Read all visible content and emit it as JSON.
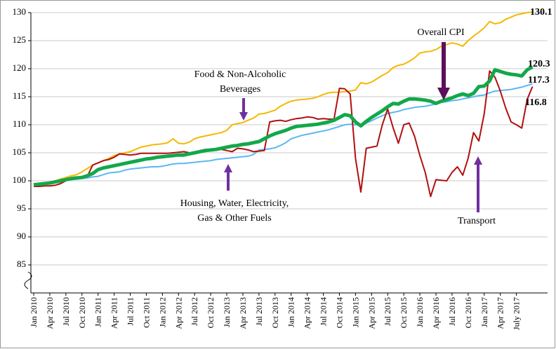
{
  "chart_data": {
    "type": "line",
    "categories": [
      "Jan 2010",
      null,
      null,
      "Apr 2010",
      null,
      null,
      "Jul 2010",
      null,
      null,
      "Oct 2010",
      null,
      null,
      "Jan 2011",
      null,
      null,
      "Apr 2011",
      null,
      null,
      "Jul 2011",
      null,
      null,
      "Oct 2011",
      null,
      null,
      "Jan 2012",
      null,
      null,
      "Apr 2012",
      null,
      null,
      "Jul 2012",
      null,
      null,
      "Oct 2012",
      null,
      null,
      "Jan 2013",
      null,
      null,
      "Apr 2013",
      null,
      null,
      "Jul 2013",
      null,
      null,
      "Oct 2013",
      null,
      null,
      "Jan 2014",
      null,
      null,
      "Apr 2014",
      null,
      null,
      "Jul 2014",
      null,
      null,
      "Oct 2014",
      null,
      null,
      "Jan 2015",
      null,
      null,
      "Apr 2015",
      null,
      null,
      "Jul 2015",
      null,
      null,
      "Oct 2015",
      null,
      null,
      "Jan 2016",
      null,
      null,
      "Apr 2016",
      null,
      null,
      "Jul 2016",
      null,
      null,
      "Oct 2016",
      null,
      null,
      "Jan 2017",
      null,
      null,
      "Apr 2017",
      null,
      null,
      "July 2017",
      null,
      null,
      null
    ],
    "series": [
      {
        "name": "Food & Non-Alcoholic Beverages",
        "color": "#f5b800",
        "width": 2,
        "values": [
          99.3,
          99.4,
          99.5,
          99.7,
          100.0,
          100.3,
          100.6,
          100.9,
          101.1,
          101.6,
          102.2,
          102.8,
          103.2,
          103.6,
          104.0,
          104.5,
          104.8,
          105.0,
          105.2,
          105.6,
          106.0,
          106.2,
          106.4,
          106.5,
          106.6,
          106.8,
          107.5,
          106.7,
          106.6,
          106.9,
          107.5,
          107.8,
          108.0,
          108.2,
          108.4,
          108.6,
          109.0,
          110.0,
          110.2,
          110.4,
          110.8,
          111.2,
          111.9,
          112.0,
          112.3,
          112.6,
          113.3,
          113.8,
          114.2,
          114.4,
          114.5,
          114.6,
          114.7,
          115.0,
          115.4,
          115.7,
          115.8,
          115.8,
          115.9,
          116.0,
          116.2,
          117.5,
          117.3,
          117.6,
          118.2,
          118.8,
          119.3,
          120.2,
          120.6,
          120.8,
          121.3,
          121.9,
          122.8,
          123.0,
          123.1,
          123.4,
          124.0,
          124.3,
          124.6,
          124.4,
          124.0,
          125.0,
          125.8,
          126.5,
          127.3,
          128.4,
          128.0,
          128.2,
          128.8,
          129.2,
          129.6,
          129.8,
          130.0,
          130.1
        ]
      },
      {
        "name": "Housing, Water, Electricity, Gas & Other Fuels",
        "color": "#5bb8f0",
        "width": 2,
        "values": [
          99.3,
          99.4,
          99.5,
          99.6,
          99.7,
          99.9,
          100.1,
          100.2,
          100.3,
          100.4,
          100.5,
          100.7,
          100.8,
          101.1,
          101.4,
          101.5,
          101.6,
          101.9,
          102.1,
          102.2,
          102.3,
          102.4,
          102.5,
          102.5,
          102.6,
          102.8,
          103.0,
          103.1,
          103.1,
          103.2,
          103.3,
          103.4,
          103.5,
          103.6,
          103.8,
          103.9,
          104.0,
          104.1,
          104.2,
          104.3,
          104.4,
          104.7,
          105.5,
          105.6,
          105.7,
          105.9,
          106.3,
          106.8,
          107.5,
          107.8,
          108.1,
          108.3,
          108.5,
          108.7,
          108.9,
          109.1,
          109.4,
          109.7,
          110.0,
          110.1,
          110.0,
          109.9,
          110.3,
          110.7,
          111.2,
          111.6,
          112.0,
          112.2,
          112.4,
          112.7,
          112.9,
          113.1,
          113.2,
          113.3,
          113.5,
          113.7,
          114.0,
          114.1,
          114.3,
          114.4,
          114.6,
          114.8,
          115.0,
          115.2,
          115.3,
          115.7,
          116.0,
          116.1,
          116.2,
          116.3,
          116.5,
          116.7,
          117.0,
          117.3
        ]
      },
      {
        "name": "Transport",
        "color": "#b01010",
        "width": 2,
        "values": [
          99.0,
          99.0,
          99.1,
          99.1,
          99.2,
          99.5,
          100.0,
          100.6,
          100.7,
          100.6,
          100.8,
          102.8,
          103.2,
          103.6,
          103.8,
          104.2,
          104.8,
          104.7,
          104.6,
          104.7,
          104.9,
          104.9,
          104.9,
          104.9,
          104.9,
          104.9,
          105.0,
          105.1,
          105.2,
          105.0,
          105.0,
          105.4,
          105.6,
          105.6,
          105.6,
          105.6,
          105.4,
          105.2,
          105.8,
          105.7,
          105.5,
          105.2,
          105.3,
          105.4,
          110.5,
          110.7,
          110.8,
          110.6,
          110.9,
          111.1,
          111.2,
          111.4,
          111.3,
          111.0,
          111.1,
          111.0,
          111.0,
          116.5,
          116.4,
          115.5,
          104.0,
          98.0,
          105.8,
          106.0,
          106.2,
          110.0,
          112.8,
          109.5,
          106.7,
          110.0,
          110.3,
          108.0,
          104.5,
          101.5,
          97.2,
          100.2,
          100.1,
          100.0,
          101.5,
          102.5,
          101.0,
          104.0,
          108.6,
          107.1,
          112.0,
          119.6,
          118.5,
          116.0,
          113.0,
          110.5,
          110.0,
          109.4,
          114.5,
          116.8
        ]
      },
      {
        "name": "Overall CPI",
        "color": "#12a84a",
        "width": 5,
        "values": [
          99.3,
          99.4,
          99.5,
          99.6,
          99.8,
          100.0,
          100.2,
          100.4,
          100.5,
          100.6,
          100.9,
          101.3,
          102.0,
          102.3,
          102.5,
          102.7,
          102.9,
          103.1,
          103.3,
          103.5,
          103.7,
          103.9,
          104.0,
          104.2,
          104.3,
          104.4,
          104.5,
          104.6,
          104.6,
          104.8,
          105.0,
          105.2,
          105.4,
          105.5,
          105.6,
          105.8,
          106.0,
          106.2,
          106.3,
          106.5,
          106.6,
          106.8,
          107.0,
          107.5,
          108.0,
          108.4,
          108.7,
          109.0,
          109.4,
          109.7,
          109.8,
          109.9,
          110.0,
          110.1,
          110.3,
          110.5,
          110.8,
          111.3,
          111.8,
          111.6,
          110.5,
          109.8,
          110.6,
          111.3,
          111.9,
          112.5,
          113.2,
          113.8,
          113.7,
          114.2,
          114.6,
          114.6,
          114.5,
          114.4,
          114.2,
          113.8,
          114.2,
          114.5,
          114.8,
          115.2,
          115.5,
          115.2,
          115.6,
          116.8,
          116.9,
          117.8,
          119.8,
          119.5,
          119.2,
          119.0,
          118.9,
          118.7,
          119.8,
          120.3
        ]
      }
    ],
    "annotations": [
      {
        "lines": [
          "Food & Non-Alcoholic",
          "Beverages"
        ]
      },
      {
        "lines": [
          "Housing, Water, Electricity,",
          "Gas & Other Fuels"
        ]
      },
      {
        "lines": [
          "Transport"
        ]
      },
      {
        "lines": [
          "Overall CPI"
        ]
      }
    ],
    "ylim": [
      80,
      130
    ],
    "yticks": [
      85,
      90,
      95,
      100,
      105,
      110,
      115,
      120,
      125,
      130
    ],
    "grid": true
  }
}
